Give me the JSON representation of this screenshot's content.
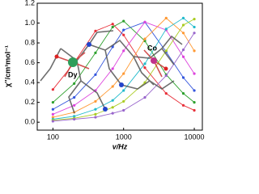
{
  "chart_data": {
    "type": "line",
    "x_label": "v/Hz",
    "y_label": "χ''/cm³mol⁻¹",
    "annotations": [
      "Dy",
      "Co"
    ],
    "log_x": true,
    "x": [
      100,
      200,
      400,
      700,
      1000,
      2000,
      4000,
      7000,
      10000
    ],
    "series": [
      {
        "color": "#e8303a",
        "values": [
          0.33,
          0.6,
          0.92,
          0.99,
          0.88,
          0.55,
          0.29,
          0.17,
          0.12
        ]
      },
      {
        "color": "#2ca02c",
        "values": [
          0.2,
          0.39,
          0.7,
          0.96,
          1.02,
          0.82,
          0.48,
          0.29,
          0.2
        ]
      },
      {
        "color": "#3355dd",
        "values": [
          0.13,
          0.25,
          0.48,
          0.76,
          0.93,
          1.01,
          0.71,
          0.45,
          0.32
        ]
      },
      {
        "color": "#dd44dd",
        "values": [
          0.08,
          0.17,
          0.32,
          0.54,
          0.72,
          1.01,
          0.93,
          0.66,
          0.49
        ]
      },
      {
        "color": "#ff9933",
        "values": [
          0.05,
          0.1,
          0.21,
          0.36,
          0.49,
          0.84,
          1.05,
          0.9,
          0.72
        ]
      },
      {
        "color": "#22bbcc",
        "values": [
          0.03,
          0.06,
          0.13,
          0.22,
          0.32,
          0.59,
          0.94,
          1.05,
          0.96
        ]
      },
      {
        "color": "#aacc22",
        "values": [
          0.02,
          0.04,
          0.08,
          0.15,
          0.21,
          0.4,
          0.72,
          0.98,
          1.04
        ]
      },
      {
        "color": "#9966cc",
        "values": [
          0.01,
          0.03,
          0.05,
          0.09,
          0.12,
          0.25,
          0.47,
          0.73,
          0.9
        ]
      }
    ],
    "xlim": [
      60,
      13000
    ],
    "xticks": [
      100,
      1000,
      10000
    ],
    "ylim": [
      -0.08,
      1.2
    ],
    "yticks": [
      {
        "value": 0,
        "label": "0.0"
      },
      {
        "value": 0.2,
        "label": "0.2"
      },
      {
        "value": 0.4,
        "label": "0.4"
      },
      {
        "value": 0.6,
        "label": "0.6"
      },
      {
        "value": 0.8,
        "label": "0.8"
      },
      {
        "value": 1.0,
        "label": "1.0"
      },
      {
        "value": 1.2,
        "label": "1.2"
      }
    ]
  }
}
